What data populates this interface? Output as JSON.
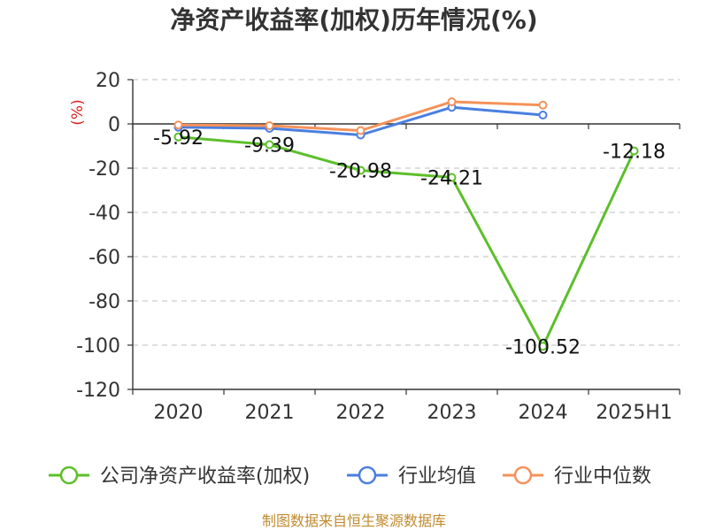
{
  "chart_data": {
    "type": "line",
    "title": "净资产收益率(加权)历年情况(%)",
    "unit_label": "(%)",
    "categories": [
      "2020",
      "2021",
      "2022",
      "2023",
      "2024",
      "2025H1"
    ],
    "ylim": [
      -120,
      20
    ],
    "yticks": [
      20,
      0,
      -20,
      -40,
      -60,
      -80,
      -100,
      -120
    ],
    "grid": true,
    "legend_position": "bottom",
    "series": [
      {
        "name": "公司净资产收益率(加权)",
        "color": "#5cbf2a",
        "values": [
          -5.92,
          -9.39,
          -20.98,
          -24.21,
          -100.52,
          -12.18
        ],
        "labels": [
          "-5.92",
          "-9.39",
          "-20.98",
          "-24.21",
          "-100.52",
          "-12.18"
        ]
      },
      {
        "name": "行业均值",
        "color": "#4a7fe0",
        "values": [
          -1.5,
          -2.0,
          -5.0,
          7.5,
          4.0,
          null
        ]
      },
      {
        "name": "行业中位数",
        "color": "#f5925a",
        "values": [
          -0.5,
          -0.8,
          -3.0,
          10.0,
          8.5,
          null
        ]
      }
    ]
  },
  "source_text": "制图数据来自恒生聚源数据库"
}
